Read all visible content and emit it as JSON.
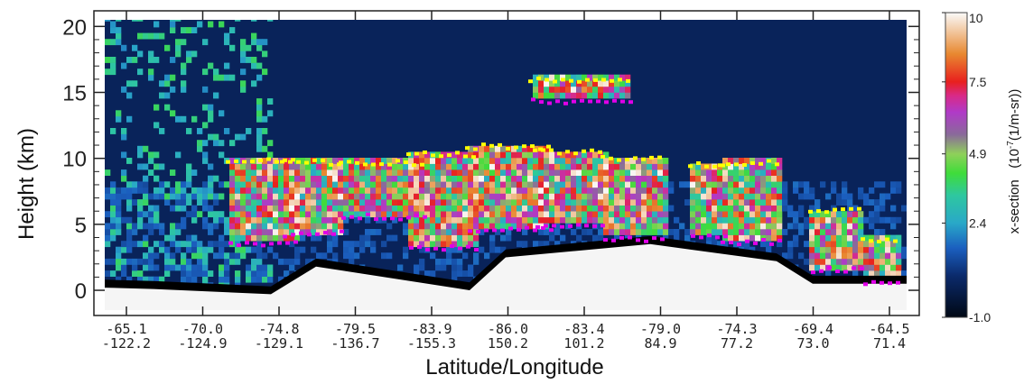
{
  "chart_data": {
    "type": "heatmap",
    "subtype": "lidar backscatter curtain",
    "title": "",
    "xlabel": "Latitude/Longitude",
    "ylabel": "Height (km)",
    "ylim": [
      -1.5,
      20.5
    ],
    "yticks": [
      0,
      5,
      10,
      15,
      20
    ],
    "x_ticks": [
      {
        "lat": "-65.1",
        "lon": "-122.2"
      },
      {
        "lat": "-70.0",
        "lon": "-124.9"
      },
      {
        "lat": "-74.8",
        "lon": "-129.1"
      },
      {
        "lat": "-79.5",
        "lon": "-136.7"
      },
      {
        "lat": "-83.9",
        "lon": "-155.3"
      },
      {
        "lat": "-86.0",
        "lon": "150.2"
      },
      {
        "lat": "-83.4",
        "lon": "101.2"
      },
      {
        "lat": "-79.0",
        "lon": "84.9"
      },
      {
        "lat": "-74.3",
        "lon": "77.2"
      },
      {
        "lat": "-69.4",
        "lon": "73.0"
      },
      {
        "lat": "-64.5",
        "lon": "71.4"
      }
    ],
    "colorbar": {
      "label_main": "x-section",
      "label_unit": "(10",
      "label_exp": "-7",
      "label_rest": "(1/m-sr))",
      "ticks": [
        "10",
        "7.5",
        "4.9",
        "2.4",
        "-1.0"
      ],
      "tick_values": [
        10,
        7.5,
        4.9,
        2.4,
        -1.0
      ],
      "range": [
        -1.0,
        10
      ],
      "stops": [
        {
          "v": -1.0,
          "c": "#000814"
        },
        {
          "v": 0.5,
          "c": "#0b2a6b"
        },
        {
          "v": 1.5,
          "c": "#1b5fbf"
        },
        {
          "v": 2.4,
          "c": "#29a8c8"
        },
        {
          "v": 3.4,
          "c": "#2ec7a0"
        },
        {
          "v": 4.2,
          "c": "#3fdc3a"
        },
        {
          "v": 4.9,
          "c": "#8fd05a"
        },
        {
          "v": 5.6,
          "c": "#8a6a9a"
        },
        {
          "v": 6.4,
          "c": "#b03ac8"
        },
        {
          "v": 7.0,
          "c": "#d82a88"
        },
        {
          "v": 7.5,
          "c": "#e8201e"
        },
        {
          "v": 8.5,
          "c": "#e88830"
        },
        {
          "v": 10,
          "c": "#fafafa"
        }
      ]
    },
    "overlay_markers": {
      "cloud_top_color": "#ffff00",
      "cloud_base_color": "#e000e8",
      "surface_color": "#f5f5f5",
      "no_signal_color": "#000000"
    },
    "grid": false,
    "legend": "colorbar-right"
  }
}
